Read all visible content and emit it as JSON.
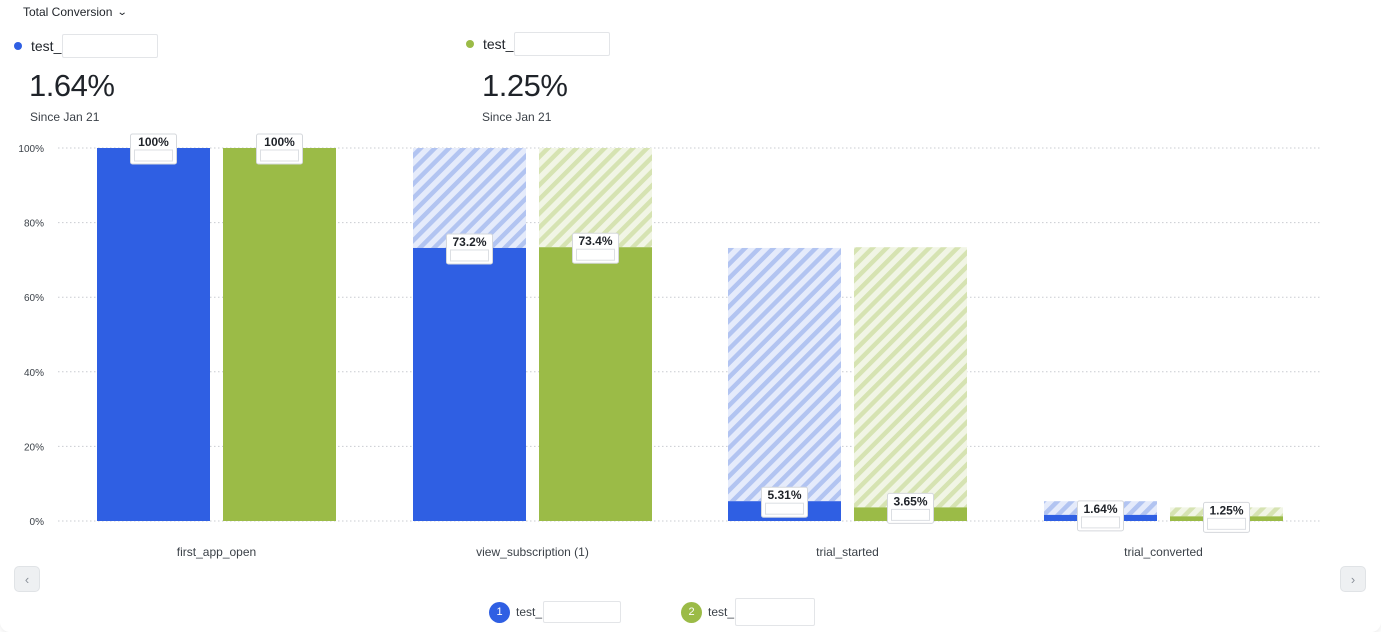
{
  "header": {
    "metric_dropdown": "Total Conversion"
  },
  "summaries": [
    {
      "name": "test_",
      "value": "1.64%",
      "since": "Since Jan 21",
      "color": "#2f5fe3"
    },
    {
      "name": "test_",
      "value": "1.25%",
      "since": "Since Jan 21",
      "color": "#9bbb47"
    }
  ],
  "legend": [
    {
      "num": "1",
      "name": "test_",
      "color": "#2f5fe3"
    },
    {
      "num": "2",
      "name": "test_",
      "color": "#9bbb47"
    }
  ],
  "chart_data": {
    "type": "bar",
    "categories": [
      "first_app_open",
      "view_subscription (1)",
      "trial_started",
      "trial_converted"
    ],
    "ylim": [
      0,
      100
    ],
    "yticks": [
      "0%",
      "20%",
      "40%",
      "60%",
      "80%",
      "100%"
    ],
    "grid": true,
    "series": [
      {
        "name": "test_",
        "color": "#2f5fe3",
        "values": [
          100,
          73.2,
          5.31,
          1.64
        ],
        "labels": [
          "100%",
          "73.2%",
          "5.31%",
          "1.64%"
        ],
        "dropoff_from": [
          100,
          100,
          73.2,
          5.31
        ]
      },
      {
        "name": "test_",
        "color": "#9bbb47",
        "values": [
          100,
          73.4,
          3.65,
          1.25
        ],
        "labels": [
          "100%",
          "73.4%",
          "3.65%",
          "1.25%"
        ],
        "dropoff_from": [
          100,
          100,
          73.4,
          3.65
        ]
      }
    ]
  }
}
